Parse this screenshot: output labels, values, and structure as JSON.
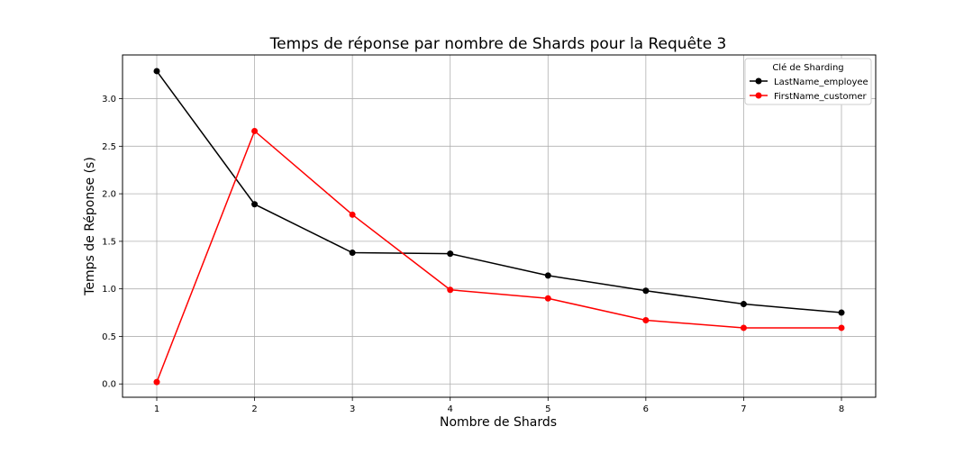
{
  "chart_data": {
    "type": "line",
    "title": "Temps de réponse par nombre de Shards pour la Requête 3",
    "xlabel": "Nombre de Shards",
    "ylabel": "Temps de Réponse (s)",
    "x": [
      1,
      2,
      3,
      4,
      5,
      6,
      7,
      8
    ],
    "xticks": [
      "1",
      "2",
      "3",
      "4",
      "5",
      "6",
      "7",
      "8"
    ],
    "yticks": [
      "0.0",
      "0.5",
      "1.0",
      "1.5",
      "2.0",
      "2.5",
      "3.0"
    ],
    "xlim": [
      0.65,
      8.35
    ],
    "ylim": [
      -0.14,
      3.46
    ],
    "grid": true,
    "legend": {
      "title": "Clé de Sharding",
      "position": "top-right"
    },
    "series": [
      {
        "name": "LastName_employee",
        "color": "#000000",
        "marker": "circle",
        "values": [
          3.29,
          1.89,
          1.38,
          1.37,
          1.14,
          0.98,
          0.84,
          0.75
        ]
      },
      {
        "name": "FirstName_customer",
        "color": "#ff0000",
        "marker": "circle",
        "values": [
          0.02,
          2.66,
          1.78,
          0.99,
          0.9,
          0.67,
          0.59,
          0.59
        ]
      }
    ]
  }
}
